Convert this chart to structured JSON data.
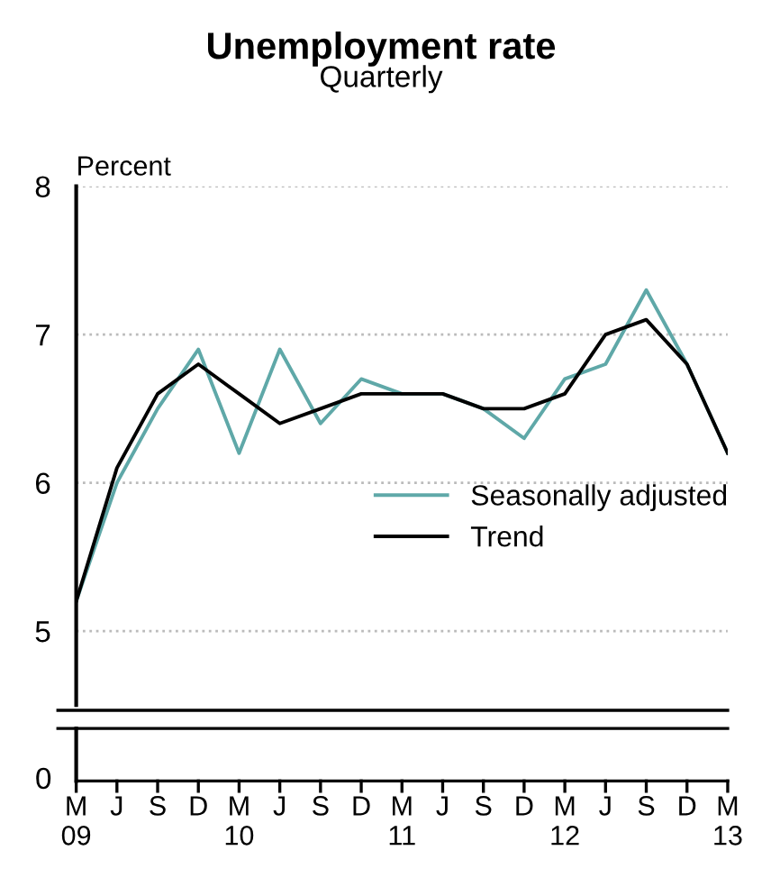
{
  "chart_data": {
    "type": "line",
    "title": "Unemployment rate",
    "subtitle": "Quarterly",
    "ylabel": "Percent",
    "categories": [
      "M\n09",
      "J",
      "S",
      "D",
      "M\n10",
      "J",
      "S",
      "D",
      "M\n11",
      "J",
      "S",
      "D",
      "M\n12",
      "J",
      "S",
      "D",
      "M\n13"
    ],
    "series": [
      {
        "name": "Seasonally adjusted",
        "color": "#5fa8a8",
        "values": [
          5.2,
          6.0,
          6.5,
          6.9,
          6.2,
          6.9,
          6.4,
          6.7,
          6.6,
          6.6,
          6.5,
          6.3,
          6.7,
          6.8,
          7.3,
          6.8,
          6.2
        ]
      },
      {
        "name": "Trend",
        "color": "#000000",
        "values": [
          5.2,
          6.1,
          6.6,
          6.8,
          6.6,
          6.4,
          6.5,
          6.6,
          6.6,
          6.6,
          6.5,
          6.5,
          6.6,
          7.0,
          7.1,
          6.8,
          6.2
        ]
      }
    ],
    "ylim": [
      4.5,
      8
    ],
    "yticks": [
      5,
      6,
      7,
      8
    ],
    "grid": "y",
    "legend": "right",
    "marker": "none",
    "line_style": "solid",
    "annotations": [
      "0"
    ]
  }
}
